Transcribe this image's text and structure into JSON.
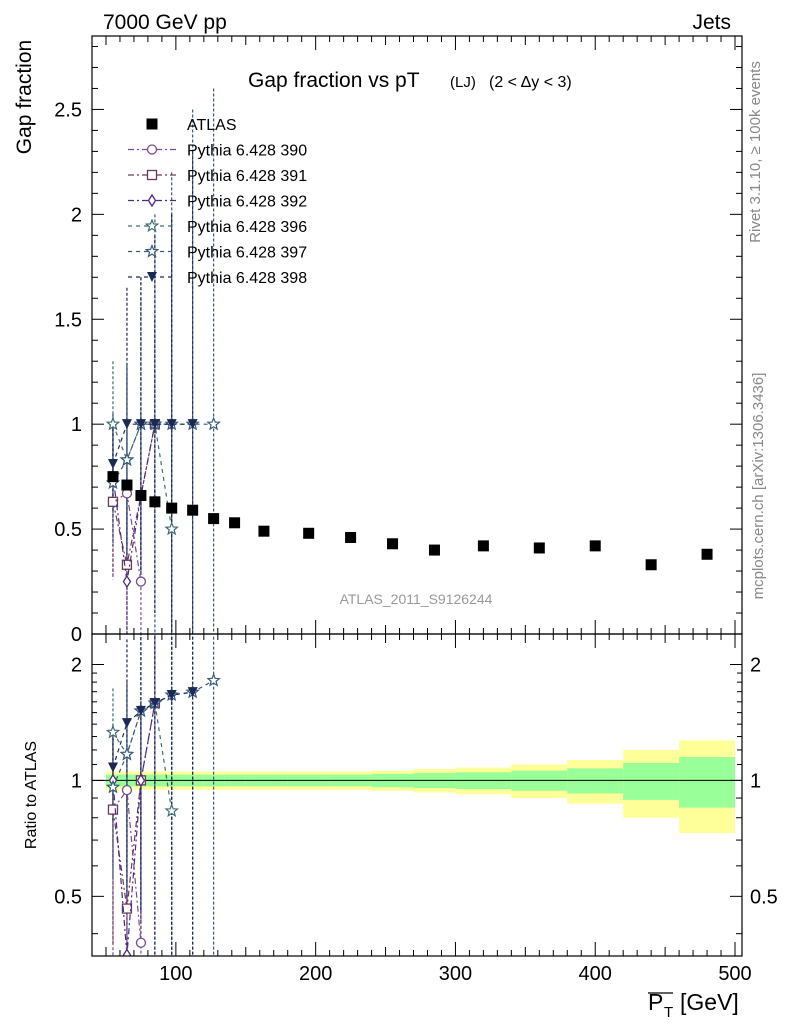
{
  "header": {
    "energy_label": "7000 GeV pp",
    "category_label": "Jets"
  },
  "side_labels": {
    "rivet": "Rivet 3.1.10, ≥ 100k events",
    "source": "mcplots.cern.ch [arXiv:1306.3436]"
  },
  "chart_data": {
    "type": "scatter",
    "title_main": "Gap fraction vs pT",
    "title_sub1": "(LJ)",
    "title_sub2": "(2 < Δy < 3)",
    "analysis_label": "ATLAS_2011_S9126244",
    "xlabel": "P_T [GeV]",
    "xlabel_main": "P",
    "xlabel_sub": "T",
    "xlabel_unit": "[GeV]",
    "ylabel": "Gap fraction",
    "ratio_ylabel": "Ratio to ATLAS",
    "xlim": [
      40,
      505
    ],
    "ylim": [
      0,
      2.85
    ],
    "ratio_ylim": [
      0.35,
      2.4
    ],
    "x_ticks": [
      100,
      200,
      300,
      400,
      500
    ],
    "y_ticks": [
      0.5,
      1,
      1.5,
      2,
      2.5
    ],
    "y_tick_labels": [
      "0.5",
      "1",
      "1.5",
      "2",
      "2.5"
    ],
    "y_zero_label": "0",
    "ratio_ticks": [
      0.5,
      1,
      2
    ],
    "ratio_tick_labels": [
      "0.5",
      "1",
      "2"
    ],
    "colors": {
      "atlas": "#000000",
      "band_inner": "#99ff99",
      "band_outer": "#ffff99"
    },
    "atlas": {
      "name": "ATLAS",
      "points": [
        [
          55,
          0.75
        ],
        [
          65,
          0.71
        ],
        [
          75,
          0.66
        ],
        [
          85,
          0.63
        ],
        [
          97,
          0.6
        ],
        [
          112,
          0.59
        ],
        [
          127,
          0.55
        ],
        [
          142,
          0.53
        ],
        [
          163,
          0.49
        ],
        [
          195,
          0.48
        ],
        [
          225,
          0.46
        ],
        [
          255,
          0.43
        ],
        [
          285,
          0.4
        ],
        [
          320,
          0.42
        ],
        [
          360,
          0.41
        ],
        [
          400,
          0.42
        ],
        [
          440,
          0.33
        ],
        [
          480,
          0.38
        ]
      ]
    },
    "ratio_band": {
      "bins": [
        [
          50,
          60
        ],
        [
          60,
          70
        ],
        [
          70,
          80
        ],
        [
          80,
          90
        ],
        [
          90,
          105
        ],
        [
          105,
          120
        ],
        [
          120,
          135
        ],
        [
          135,
          150
        ],
        [
          150,
          180
        ],
        [
          180,
          210
        ],
        [
          210,
          240
        ],
        [
          240,
          270
        ],
        [
          270,
          300
        ],
        [
          300,
          340
        ],
        [
          340,
          380
        ],
        [
          380,
          420
        ],
        [
          420,
          460
        ],
        [
          460,
          500
        ]
      ],
      "inner": [
        0.035,
        0.035,
        0.035,
        0.035,
        0.035,
        0.035,
        0.035,
        0.035,
        0.035,
        0.035,
        0.035,
        0.04,
        0.045,
        0.05,
        0.06,
        0.075,
        0.11,
        0.15
      ],
      "outer": [
        0.055,
        0.055,
        0.055,
        0.055,
        0.055,
        0.055,
        0.055,
        0.055,
        0.055,
        0.055,
        0.055,
        0.06,
        0.07,
        0.08,
        0.1,
        0.13,
        0.2,
        0.27
      ]
    },
    "series": [
      {
        "name": "Pythia 6.428 390",
        "color": "#7b4c8a",
        "marker": "circle",
        "dash": "6,3,2,3",
        "points": [
          [
            55,
            0.63,
            0.37
          ],
          [
            65,
            0.67,
            0.35
          ],
          [
            75,
            0.25,
            0.45
          ]
        ]
      },
      {
        "name": "Pythia 6.428 391",
        "color": "#6b3a5a",
        "marker": "square",
        "dash": "6,3,2,3",
        "points": [
          [
            55,
            0.63,
            0.35
          ],
          [
            65,
            0.33,
            0.4
          ],
          [
            75,
            0.66,
            0.4
          ],
          [
            85,
            1.0,
            0.5
          ]
        ]
      },
      {
        "name": "Pythia 6.428 392",
        "color": "#4b2a82",
        "marker": "diamond",
        "dash": "6,3,2,3",
        "points": [
          [
            55,
            0.75,
            0.3
          ],
          [
            65,
            0.25,
            0.45
          ],
          [
            75,
            0.66,
            0.38
          ],
          [
            85,
            1.0,
            0.5
          ],
          [
            97,
            1.0,
            1.0
          ]
        ]
      },
      {
        "name": "Pythia 6.428 396",
        "color": "#3e6d74",
        "marker": "star",
        "dash": "4,4",
        "points": [
          [
            55,
            1.0,
            0.3
          ],
          [
            65,
            0.83,
            0.4
          ],
          [
            75,
            1.0,
            0.6
          ],
          [
            85,
            1.0,
            0.9
          ],
          [
            97,
            0.5,
            1.0
          ]
        ]
      },
      {
        "name": "Pythia 6.428 397",
        "color": "#365a7c",
        "marker": "star",
        "dash": "4,4",
        "points": [
          [
            55,
            0.72,
            0.3
          ],
          [
            65,
            0.83,
            0.45
          ],
          [
            75,
            1.0,
            0.7
          ],
          [
            85,
            1.0,
            1.0
          ],
          [
            97,
            1.0,
            1.2
          ],
          [
            112,
            1.0,
            1.5
          ],
          [
            127,
            1.0,
            1.6
          ]
        ]
      },
      {
        "name": "Pythia 6.428 398",
        "color": "#1b2a55",
        "marker": "triangle-down",
        "dash": "4,4",
        "points": [
          [
            55,
            0.81,
            0.22
          ],
          [
            65,
            1.0,
            0.65
          ],
          [
            75,
            1.0,
            0.7
          ],
          [
            85,
            1.0,
            0.9
          ],
          [
            97,
            1.0,
            1.0
          ],
          [
            112,
            1.0,
            1.3
          ]
        ]
      }
    ]
  }
}
